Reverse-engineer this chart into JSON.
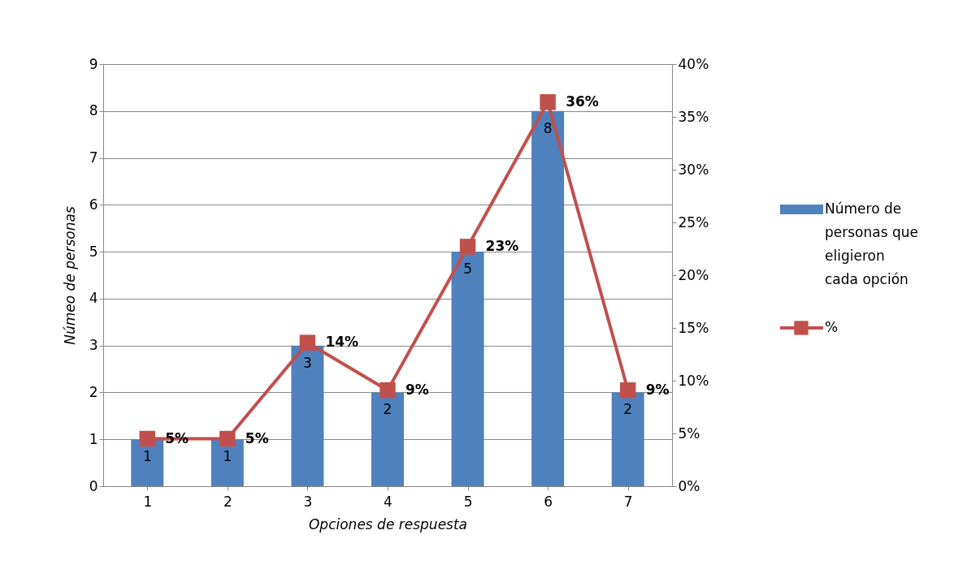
{
  "chart_data": {
    "type": "bar",
    "xlabel": "Opciones de respuesta",
    "ylabel": "Númeo de personas",
    "categories": [
      "1",
      "2",
      "3",
      "4",
      "5",
      "6",
      "7"
    ],
    "series": [
      {
        "name": "Número de personas que eligieron cada opción",
        "color": "#4f81bd",
        "values": [
          1,
          1,
          3,
          2,
          5,
          8,
          2
        ],
        "value_labels": [
          "1",
          "1",
          "3",
          "2",
          "5",
          "8",
          "2"
        ]
      },
      {
        "name": "%",
        "type": "line",
        "axis": "y2",
        "color": "#c0504d",
        "marker": "square",
        "values": [
          4.5,
          4.5,
          13.6,
          9.1,
          22.7,
          36.4,
          9.1
        ],
        "value_labels": [
          "5%",
          "5%",
          "14%",
          "9%",
          "23%",
          "36%",
          "9%"
        ]
      }
    ],
    "ylim": [
      0,
      9
    ],
    "yticks": [
      0,
      1,
      2,
      3,
      4,
      5,
      6,
      7,
      8,
      9
    ],
    "y2lim": [
      0,
      40
    ],
    "y2ticks": [
      {
        "value": 0,
        "label": "0%"
      },
      {
        "value": 5,
        "label": "5%"
      },
      {
        "value": 10,
        "label": "10%"
      },
      {
        "value": 15,
        "label": "15%"
      },
      {
        "value": 20,
        "label": "20%"
      },
      {
        "value": 25,
        "label": "25%"
      },
      {
        "value": 30,
        "label": "30%"
      },
      {
        "value": 35,
        "label": "35%"
      },
      {
        "value": 40,
        "label": "40%"
      }
    ],
    "grid": "y",
    "legend": "right"
  }
}
